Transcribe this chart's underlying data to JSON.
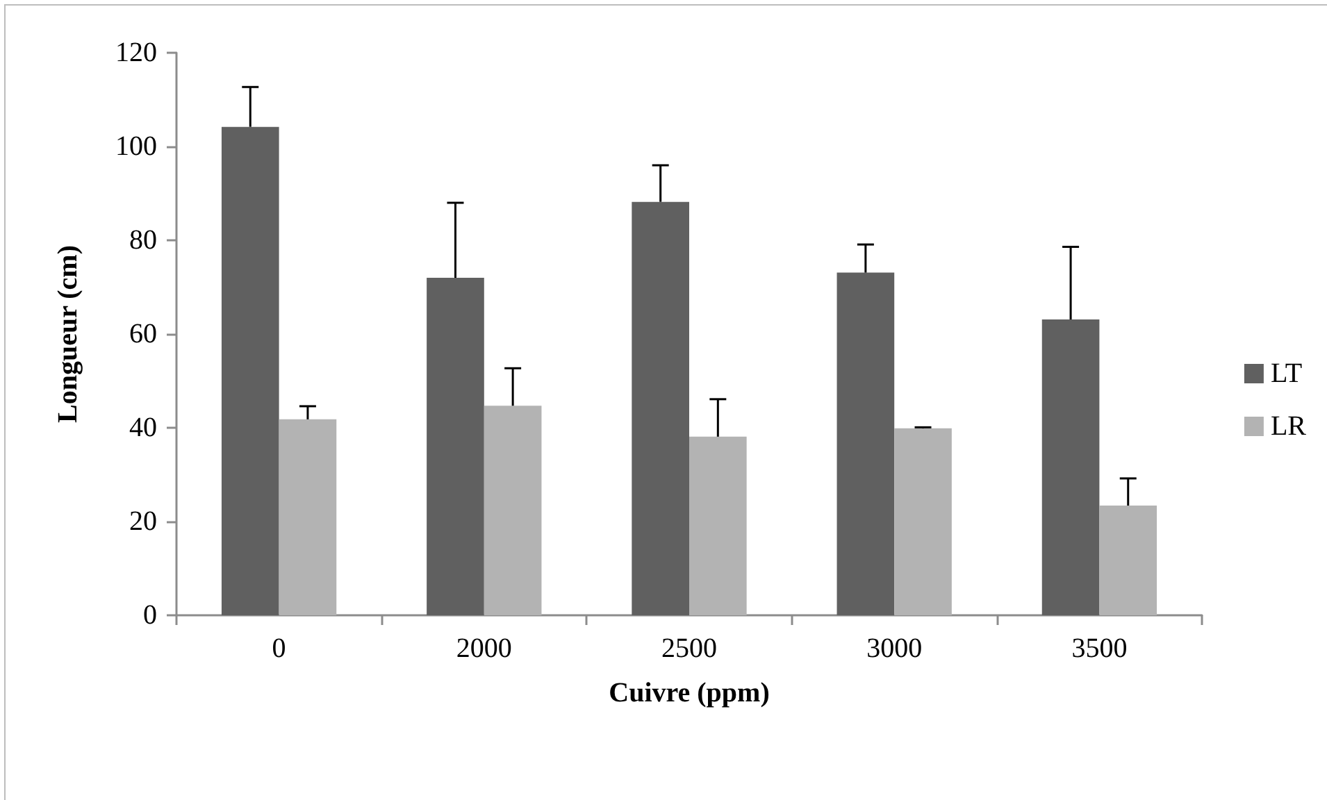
{
  "chart_data": {
    "type": "bar",
    "xlabel": "Cuivre (ppm)",
    "ylabel": "Longueur (cm)",
    "categories": [
      "0",
      "2000",
      "2500",
      "3000",
      "3500"
    ],
    "series": [
      {
        "name": "LT",
        "color": "#606060",
        "values": [
          104.2,
          72,
          88.2,
          73.1,
          63.1
        ],
        "errors": [
          [
            104.2,
            112.7
          ],
          [
            72,
            88
          ],
          [
            88.2,
            96
          ],
          [
            73.1,
            79.1
          ],
          [
            63.1,
            78.6
          ]
        ]
      },
      {
        "name": "LR",
        "color": "#b3b3b3",
        "values": [
          41.8,
          44.7,
          38.1,
          39.9,
          23.4
        ],
        "errors": [
          [
            41.8,
            44.6
          ],
          [
            44.7,
            52.7
          ],
          [
            38.1,
            46.1
          ],
          [
            39.9,
            40.1
          ],
          [
            23.4,
            29.2
          ]
        ]
      }
    ],
    "ylim": [
      0,
      120
    ],
    "yticks": [
      0,
      20,
      40,
      60,
      80,
      100,
      120
    ],
    "grid": false,
    "legend": "right"
  }
}
